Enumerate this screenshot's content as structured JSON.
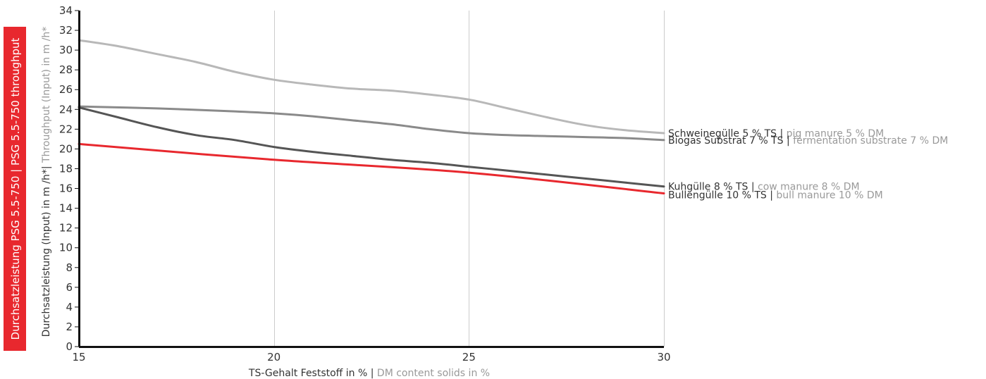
{
  "banner": "Durchsatzleistung PSG 5.5-750 | PSG 5.5-750 throughput",
  "chart_data": {
    "type": "line",
    "xlim": [
      15,
      30
    ],
    "ylim": [
      0,
      34
    ],
    "x_ticks": [
      15,
      20,
      25,
      30
    ],
    "y_ticks": [
      0,
      2,
      4,
      6,
      8,
      10,
      12,
      14,
      16,
      18,
      20,
      22,
      24,
      26,
      28,
      30,
      32,
      34
    ],
    "xlabel_de": "TS-Gehalt Feststoff in %",
    "xlabel_sep": " | ",
    "xlabel_en": "DM content solids in %",
    "ylabel_de": "Durchsatzleistung (Input) in m /h*",
    "ylabel_sep": "| ",
    "ylabel_en": "Throughput (Input) in m /h*",
    "grid": "vertical",
    "series": [
      {
        "label_de": "Schweinegülle 5 % TS",
        "label_en": "pig manure 5 % DM",
        "color": "#b8b8b8",
        "x": [
          15,
          16,
          17,
          18,
          19,
          20,
          21,
          22,
          23,
          24,
          25,
          26,
          27,
          28,
          29,
          30
        ],
        "y": [
          31.0,
          30.4,
          29.6,
          28.8,
          27.8,
          27.0,
          26.5,
          26.1,
          25.9,
          25.5,
          25.0,
          24.1,
          23.2,
          22.4,
          21.9,
          21.6
        ]
      },
      {
        "label_de": "Biogas Substrat 7 % TS",
        "label_en": "fermentation substrate 7 % DM",
        "color": "#8a8a8a",
        "x": [
          15,
          17,
          19,
          20,
          21,
          22,
          23,
          24,
          25,
          26,
          27,
          28,
          29,
          30
        ],
        "y": [
          24.3,
          24.1,
          23.8,
          23.6,
          23.3,
          22.9,
          22.5,
          22.0,
          21.6,
          21.4,
          21.3,
          21.2,
          21.1,
          20.9
        ]
      },
      {
        "label_de": "Kuhgülle 8 % TS",
        "label_en": "cow manure 8 % DM",
        "color": "#555555",
        "x": [
          15,
          16,
          17,
          18,
          19,
          20,
          21,
          22,
          23,
          24,
          25,
          26,
          27,
          28,
          29,
          30
        ],
        "y": [
          24.2,
          23.2,
          22.2,
          21.4,
          20.9,
          20.2,
          19.7,
          19.3,
          18.9,
          18.6,
          18.2,
          17.8,
          17.4,
          17.0,
          16.6,
          16.2
        ]
      },
      {
        "label_de": "Bullengülle 10 % TS",
        "label_en": "bull manure 10 % DM",
        "color": "#e8282e",
        "x": [
          15,
          20,
          25,
          30
        ],
        "y": [
          20.5,
          18.9,
          17.6,
          15.5
        ]
      }
    ]
  }
}
